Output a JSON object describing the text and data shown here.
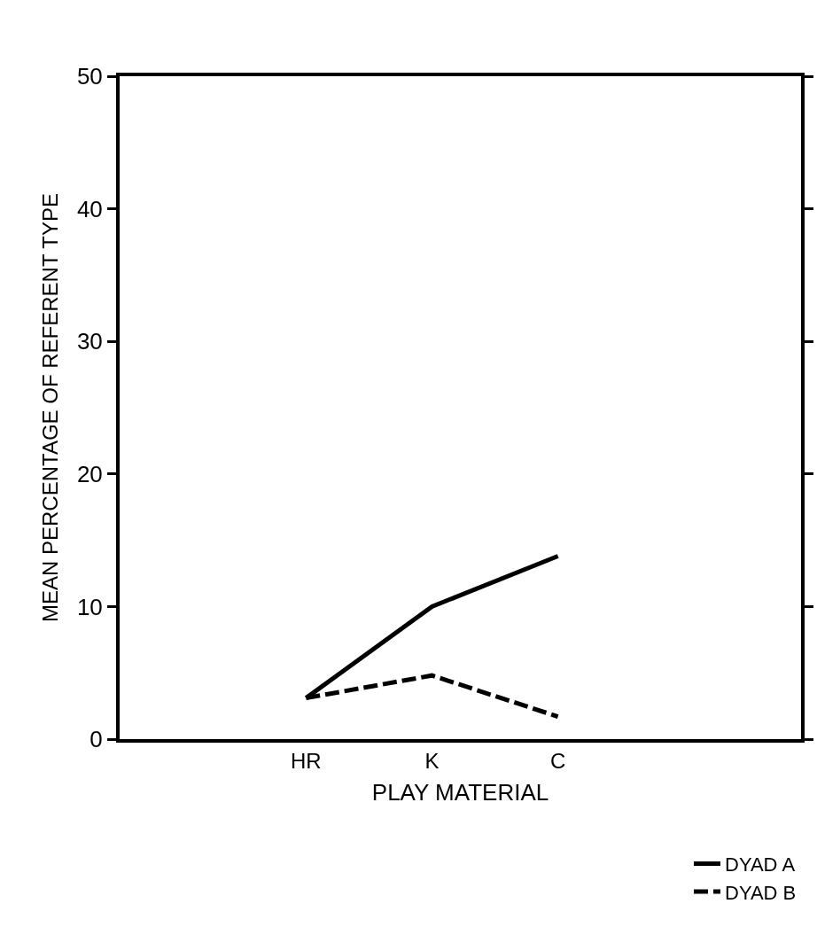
{
  "chart_data": {
    "type": "line",
    "xlabel": "PLAY MATERIAL",
    "ylabel": "MEAN PERCENTAGE OF REFERENT TYPE",
    "categories": [
      "HR",
      "K",
      "C"
    ],
    "series": [
      {
        "name": "DYAD A",
        "color": "#000000",
        "values": [
          3.1,
          10.0,
          13.8
        ],
        "line_style": "solid"
      },
      {
        "name": "DYAD B",
        "color": "#000000",
        "values": [
          3.1,
          4.8,
          1.7
        ],
        "line_style": "dashed"
      }
    ],
    "ylim": [
      0,
      50
    ],
    "yticks": [
      0,
      10,
      20,
      30,
      40,
      50
    ],
    "legend": "bottom right",
    "marker": "none"
  }
}
